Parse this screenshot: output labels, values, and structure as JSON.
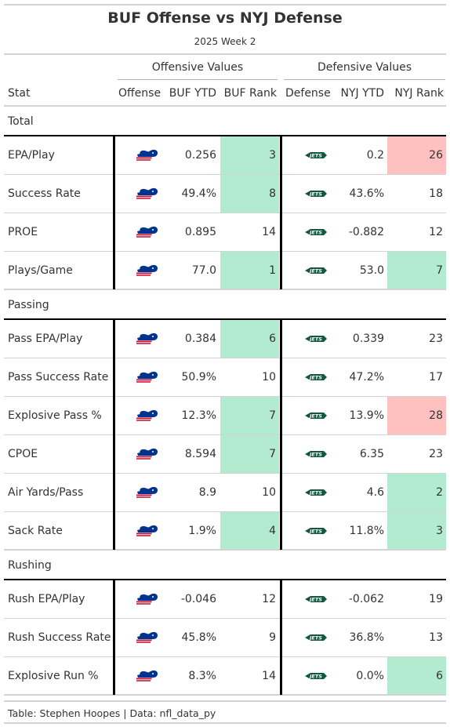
{
  "title": "BUF Offense vs NYJ Defense",
  "subtitle": "2025 Week 2",
  "spanners": {
    "offense": "Offensive Values",
    "defense": "Defensive Values"
  },
  "columns": [
    "Stat",
    "Offense",
    "BUF YTD",
    "BUF Rank",
    "Defense",
    "NYJ YTD",
    "NYJ Rank"
  ],
  "colors": {
    "good": "#b2ebd0",
    "bad": "#ffc0c0",
    "bills_blue": "#00338d",
    "bills_red": "#c60c30",
    "jets_green": "#125740"
  },
  "icons": {
    "offense_logo": "bills-logo-icon",
    "defense_logo": "jets-logo-icon"
  },
  "groups": [
    {
      "label": "Total",
      "rows": [
        {
          "stat": "EPA/Play",
          "buf_ytd": "0.256",
          "buf_rank": "3",
          "buf_tier": "good",
          "nyj_ytd": "0.2",
          "nyj_rank": "26",
          "nyj_tier": "bad"
        },
        {
          "stat": "Success Rate",
          "buf_ytd": "49.4%",
          "buf_rank": "8",
          "buf_tier": "good",
          "nyj_ytd": "43.6%",
          "nyj_rank": "18",
          "nyj_tier": ""
        },
        {
          "stat": "PROE",
          "buf_ytd": "0.895",
          "buf_rank": "14",
          "buf_tier": "",
          "nyj_ytd": "-0.882",
          "nyj_rank": "12",
          "nyj_tier": ""
        },
        {
          "stat": "Plays/Game",
          "buf_ytd": "77.0",
          "buf_rank": "1",
          "buf_tier": "good",
          "nyj_ytd": "53.0",
          "nyj_rank": "7",
          "nyj_tier": "good"
        }
      ]
    },
    {
      "label": "Passing",
      "rows": [
        {
          "stat": "Pass EPA/Play",
          "buf_ytd": "0.384",
          "buf_rank": "6",
          "buf_tier": "good",
          "nyj_ytd": "0.339",
          "nyj_rank": "23",
          "nyj_tier": ""
        },
        {
          "stat": "Pass Success Rate",
          "buf_ytd": "50.9%",
          "buf_rank": "10",
          "buf_tier": "",
          "nyj_ytd": "47.2%",
          "nyj_rank": "17",
          "nyj_tier": ""
        },
        {
          "stat": "Explosive Pass %",
          "buf_ytd": "12.3%",
          "buf_rank": "7",
          "buf_tier": "good",
          "nyj_ytd": "13.9%",
          "nyj_rank": "28",
          "nyj_tier": "bad"
        },
        {
          "stat": "CPOE",
          "buf_ytd": "8.594",
          "buf_rank": "7",
          "buf_tier": "good",
          "nyj_ytd": "6.35",
          "nyj_rank": "23",
          "nyj_tier": ""
        },
        {
          "stat": "Air Yards/Pass",
          "buf_ytd": "8.9",
          "buf_rank": "10",
          "buf_tier": "",
          "nyj_ytd": "4.6",
          "nyj_rank": "2",
          "nyj_tier": "good"
        },
        {
          "stat": "Sack Rate",
          "buf_ytd": "1.9%",
          "buf_rank": "4",
          "buf_tier": "good",
          "nyj_ytd": "11.8%",
          "nyj_rank": "3",
          "nyj_tier": "good"
        }
      ]
    },
    {
      "label": "Rushing",
      "rows": [
        {
          "stat": "Rush EPA/Play",
          "buf_ytd": "-0.046",
          "buf_rank": "12",
          "buf_tier": "",
          "nyj_ytd": "-0.062",
          "nyj_rank": "19",
          "nyj_tier": ""
        },
        {
          "stat": "Rush Success Rate",
          "buf_ytd": "45.8%",
          "buf_rank": "9",
          "buf_tier": "",
          "nyj_ytd": "36.8%",
          "nyj_rank": "13",
          "nyj_tier": ""
        },
        {
          "stat": "Explosive Run %",
          "buf_ytd": "8.3%",
          "buf_rank": "14",
          "buf_tier": "",
          "nyj_ytd": "0.0%",
          "nyj_rank": "6",
          "nyj_tier": "good"
        }
      ]
    }
  ],
  "footer": "Table: Stephen Hoopes | Data: nfl_data_py"
}
